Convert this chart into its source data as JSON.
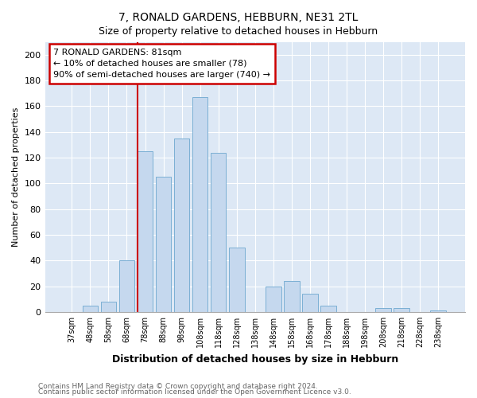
{
  "title": "7, RONALD GARDENS, HEBBURN, NE31 2TL",
  "subtitle": "Size of property relative to detached houses in Hebburn",
  "xlabel": "Distribution of detached houses by size in Hebburn",
  "ylabel": "Number of detached properties",
  "bar_labels": [
    "37sqm",
    "48sqm",
    "58sqm",
    "68sqm",
    "78sqm",
    "88sqm",
    "98sqm",
    "108sqm",
    "118sqm",
    "128sqm",
    "138sqm",
    "148sqm",
    "158sqm",
    "168sqm",
    "178sqm",
    "188sqm",
    "198sqm",
    "208sqm",
    "218sqm",
    "228sqm",
    "238sqm"
  ],
  "bar_values": [
    0,
    5,
    8,
    40,
    125,
    105,
    135,
    167,
    124,
    50,
    0,
    20,
    24,
    14,
    5,
    0,
    0,
    3,
    3,
    0,
    1
  ],
  "bar_color": "#c5d8ee",
  "bar_edge_color": "#7bafd4",
  "vline_index": 4,
  "vline_color": "#cc0000",
  "annotation_title": "7 RONALD GARDENS: 81sqm",
  "annotation_line1": "← 10% of detached houses are smaller (78)",
  "annotation_line2": "90% of semi-detached houses are larger (740) →",
  "annotation_box_facecolor": "#ffffff",
  "annotation_box_edgecolor": "#cc0000",
  "ylim": [
    0,
    210
  ],
  "yticks": [
    0,
    20,
    40,
    60,
    80,
    100,
    120,
    140,
    160,
    180,
    200
  ],
  "figure_facecolor": "#ffffff",
  "axes_facecolor": "#dde8f5",
  "grid_color": "#ffffff",
  "footer1": "Contains HM Land Registry data © Crown copyright and database right 2024.",
  "footer2": "Contains public sector information licensed under the Open Government Licence v3.0."
}
